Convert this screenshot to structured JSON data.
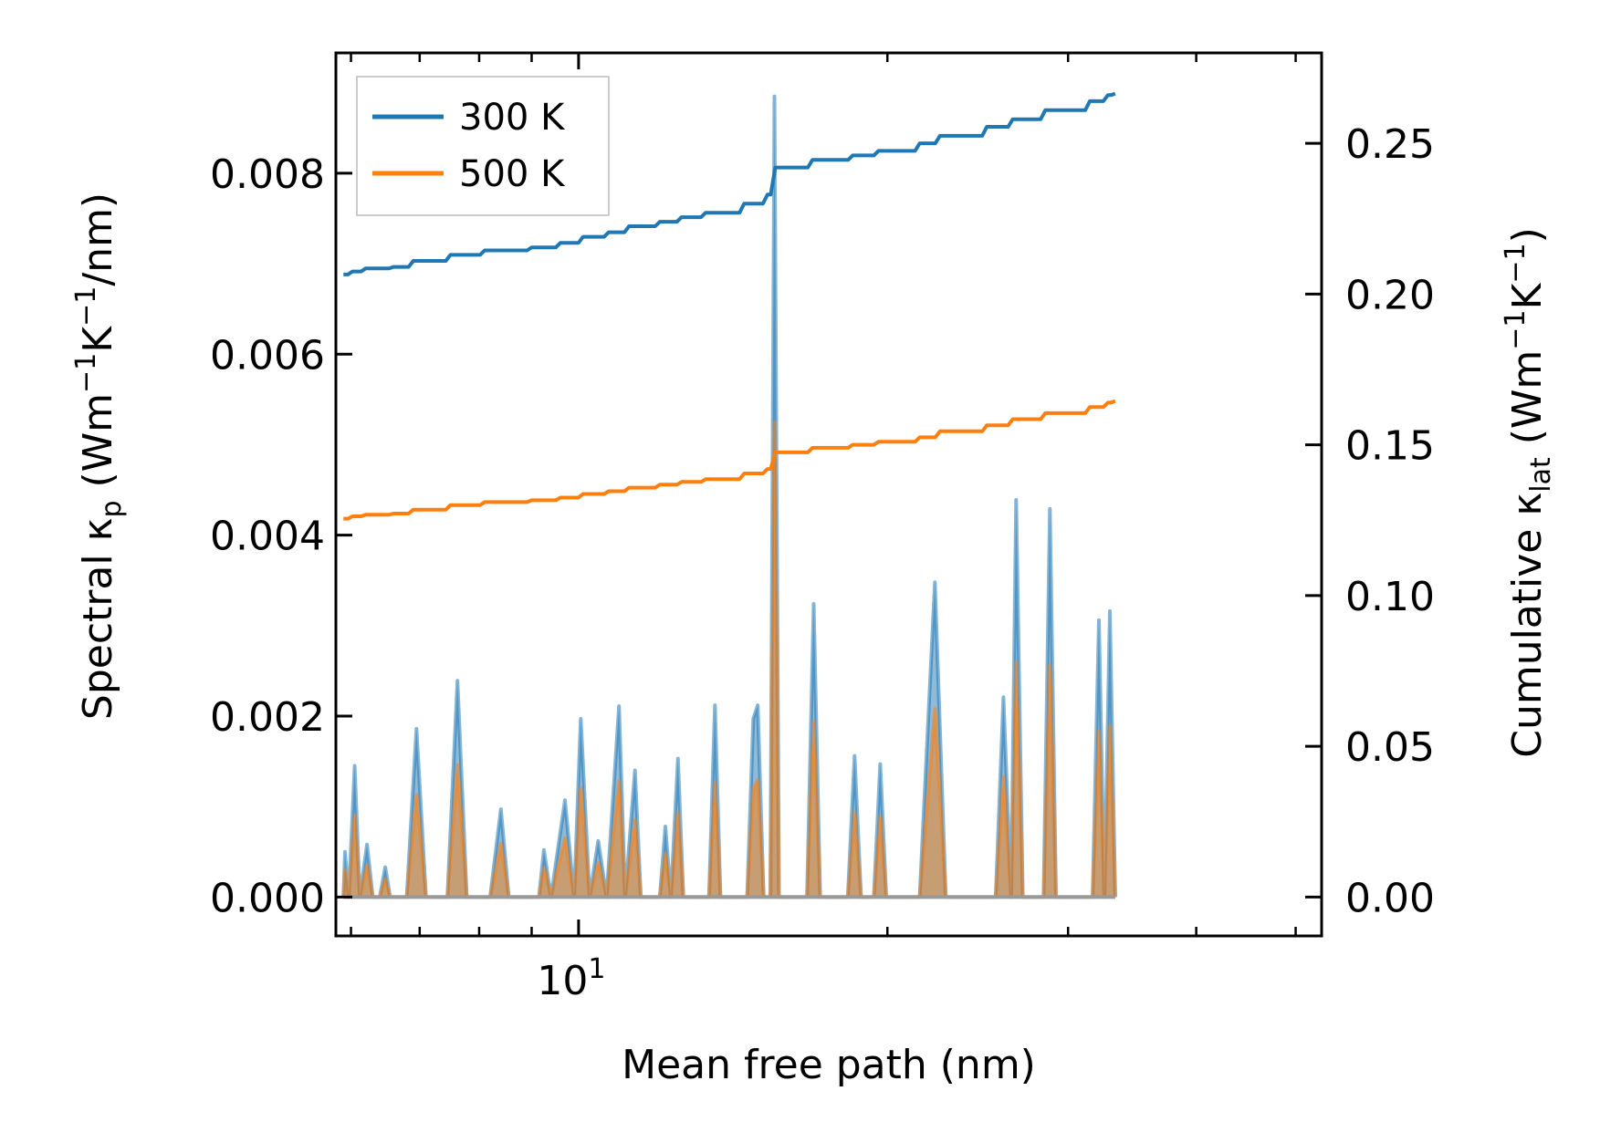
{
  "chart_data": {
    "type": "line",
    "xscale": "log",
    "xlabel": "Mean free path (nm)",
    "ylabel_left": {
      "prefix": "Spectral κ",
      "sub": "p",
      "units": " (Wm",
      "sup1": "−1",
      "mid": "K",
      "sup2": "−1",
      "end": "/nm)"
    },
    "ylabel_right": {
      "prefix": "Cumulative κ",
      "sub": "lat",
      "units": " (Wm",
      "sup1": "−1",
      "mid": "K",
      "sup2": "−1",
      "end": ")"
    },
    "xlim": [
      5.8,
      53.0
    ],
    "ylim_left": [
      -0.00043,
      0.00933
    ],
    "ylim_right": [
      -0.0129,
      0.28
    ],
    "x_major_ticks": [
      {
        "value": 10,
        "base": "10",
        "exp": "1"
      }
    ],
    "x_minor_ticks": [
      6,
      7,
      8,
      9,
      20,
      30,
      40,
      50
    ],
    "yticks_left": [
      {
        "value": 0,
        "label": "0.000"
      },
      {
        "value": 0.002,
        "label": "0.002"
      },
      {
        "value": 0.004,
        "label": "0.004"
      },
      {
        "value": 0.006,
        "label": "0.006"
      },
      {
        "value": 0.008,
        "label": "0.008"
      }
    ],
    "yticks_right": [
      {
        "value": 0,
        "label": "0.00"
      },
      {
        "value": 0.05,
        "label": "0.05"
      },
      {
        "value": 0.1,
        "label": "0.10"
      },
      {
        "value": 0.15,
        "label": "0.15"
      },
      {
        "value": 0.2,
        "label": "0.20"
      },
      {
        "value": 0.25,
        "label": "0.25"
      }
    ],
    "legend": {
      "position": "top-left",
      "entries": [
        {
          "label": "300 K",
          "color": "#1f77b4"
        },
        {
          "label": "500 K",
          "color": "#ff7f0e"
        }
      ]
    },
    "spectral_series": [
      {
        "name": "300 K",
        "color": "#1f77b4",
        "axis": "left",
        "points": [
          [
            5.9,
            0
          ],
          [
            5.92,
            0.0005
          ],
          [
            5.97,
            0
          ],
          [
            6.05,
            0.00145
          ],
          [
            6.12,
            0
          ],
          [
            6.22,
            0.00058
          ],
          [
            6.3,
            0
          ],
          [
            6.4,
            0
          ],
          [
            6.48,
            0.00033
          ],
          [
            6.55,
            0
          ],
          [
            6.8,
            0
          ],
          [
            6.95,
            0.00186
          ],
          [
            7.1,
            0
          ],
          [
            7.45,
            0
          ],
          [
            7.62,
            0.00239
          ],
          [
            7.78,
            0
          ],
          [
            8.2,
            0
          ],
          [
            8.4,
            0.00097
          ],
          [
            8.55,
            0
          ],
          [
            9.15,
            0
          ],
          [
            9.25,
            0.00052
          ],
          [
            9.4,
            0
          ],
          [
            9.7,
            0.00107
          ],
          [
            9.9,
            0
          ],
          [
            10.05,
            0.00197
          ],
          [
            10.25,
            0
          ],
          [
            10.45,
            0.00062
          ],
          [
            10.65,
            0
          ],
          [
            10.95,
            0.00211
          ],
          [
            11.1,
            0
          ],
          [
            11.35,
            0.0014
          ],
          [
            11.5,
            0
          ],
          [
            12.0,
            0
          ],
          [
            12.15,
            0.00078
          ],
          [
            12.3,
            0
          ],
          [
            12.5,
            0.00153
          ],
          [
            12.65,
            0
          ],
          [
            13.4,
            0
          ],
          [
            13.58,
            0.00212
          ],
          [
            13.75,
            0
          ],
          [
            14.6,
            0
          ],
          [
            14.8,
            0.00197
          ],
          [
            14.95,
            0.00212
          ],
          [
            15.15,
            0
          ],
          [
            15.38,
            0
          ],
          [
            15.52,
            0.00885
          ],
          [
            15.68,
            0
          ],
          [
            16.7,
            0
          ],
          [
            16.95,
            0.00324
          ],
          [
            17.2,
            0
          ],
          [
            18.3,
            0
          ],
          [
            18.58,
            0.00156
          ],
          [
            18.85,
            0
          ],
          [
            19.4,
            0
          ],
          [
            19.68,
            0.00147
          ],
          [
            19.95,
            0
          ],
          [
            21.5,
            0
          ],
          [
            22.25,
            0.00348
          ],
          [
            22.8,
            0
          ],
          [
            25.5,
            0
          ],
          [
            25.95,
            0.00221
          ],
          [
            26.4,
            0
          ],
          [
            26.7,
            0.00439
          ],
          [
            27.1,
            0
          ],
          [
            28.4,
            0
          ],
          [
            28.8,
            0.00429
          ],
          [
            29.2,
            0
          ],
          [
            31.7,
            0
          ],
          [
            32.15,
            0.00306
          ],
          [
            32.55,
            0
          ],
          [
            32.95,
            0.00316
          ],
          [
            33.35,
            0
          ]
        ]
      },
      {
        "name": "500 K",
        "color": "#ff7f0e",
        "axis": "left",
        "points": [
          [
            5.9,
            0
          ],
          [
            5.92,
            0.0003
          ],
          [
            5.97,
            0
          ],
          [
            6.05,
            0.0009
          ],
          [
            6.12,
            0
          ],
          [
            6.22,
            0.00035
          ],
          [
            6.3,
            0
          ],
          [
            6.4,
            0
          ],
          [
            6.48,
            0.0002
          ],
          [
            6.55,
            0
          ],
          [
            6.8,
            0
          ],
          [
            6.95,
            0.00113
          ],
          [
            7.1,
            0
          ],
          [
            7.45,
            0
          ],
          [
            7.62,
            0.00146
          ],
          [
            7.78,
            0
          ],
          [
            8.2,
            0
          ],
          [
            8.4,
            0.00059
          ],
          [
            8.55,
            0
          ],
          [
            9.15,
            0
          ],
          [
            9.25,
            0.00032
          ],
          [
            9.4,
            0
          ],
          [
            9.7,
            0.00065
          ],
          [
            9.9,
            0
          ],
          [
            10.05,
            0.0012
          ],
          [
            10.25,
            0
          ],
          [
            10.45,
            0.00038
          ],
          [
            10.65,
            0
          ],
          [
            10.95,
            0.00128
          ],
          [
            11.1,
            0
          ],
          [
            11.35,
            0.00085
          ],
          [
            11.5,
            0
          ],
          [
            12.0,
            0
          ],
          [
            12.15,
            0.00048
          ],
          [
            12.3,
            0
          ],
          [
            12.5,
            0.00093
          ],
          [
            12.65,
            0
          ],
          [
            13.4,
            0
          ],
          [
            13.58,
            0.00126
          ],
          [
            13.75,
            0
          ],
          [
            14.6,
            0
          ],
          [
            14.8,
            0.0012
          ],
          [
            14.95,
            0.00129
          ],
          [
            15.15,
            0
          ],
          [
            15.38,
            0
          ],
          [
            15.52,
            0.00525
          ],
          [
            15.68,
            0
          ],
          [
            16.7,
            0
          ],
          [
            16.95,
            0.00194
          ],
          [
            17.2,
            0
          ],
          [
            18.3,
            0
          ],
          [
            18.58,
            0.00093
          ],
          [
            18.85,
            0
          ],
          [
            19.4,
            0
          ],
          [
            19.68,
            0.00089
          ],
          [
            19.95,
            0
          ],
          [
            21.5,
            0
          ],
          [
            22.25,
            0.00208
          ],
          [
            22.8,
            0
          ],
          [
            25.5,
            0
          ],
          [
            25.95,
            0.00133
          ],
          [
            26.4,
            0
          ],
          [
            26.7,
            0.00259
          ],
          [
            27.1,
            0
          ],
          [
            28.4,
            0
          ],
          [
            28.8,
            0.00256
          ],
          [
            29.2,
            0
          ],
          [
            31.7,
            0
          ],
          [
            32.15,
            0.00183
          ],
          [
            32.55,
            0
          ],
          [
            32.95,
            0.00189
          ],
          [
            33.35,
            0
          ]
        ]
      }
    ],
    "cumulative_series": [
      {
        "name": "300 K",
        "color": "#1f77b4",
        "axis": "right",
        "points": [
          [
            5.9,
            0.2065
          ],
          [
            6.02,
            0.2075
          ],
          [
            6.2,
            0.2085
          ],
          [
            6.6,
            0.209
          ],
          [
            6.9,
            0.211
          ],
          [
            7.5,
            0.213
          ],
          [
            8.1,
            0.2145
          ],
          [
            9.0,
            0.2155
          ],
          [
            9.6,
            0.217
          ],
          [
            10.1,
            0.219
          ],
          [
            10.7,
            0.2205
          ],
          [
            11.2,
            0.2225
          ],
          [
            12.0,
            0.224
          ],
          [
            12.6,
            0.2255
          ],
          [
            13.3,
            0.227
          ],
          [
            14.5,
            0.23
          ],
          [
            15.28,
            0.233
          ],
          [
            15.55,
            0.242
          ],
          [
            16.9,
            0.2445
          ],
          [
            18.5,
            0.246
          ],
          [
            19.6,
            0.2475
          ],
          [
            21.5,
            0.25
          ],
          [
            22.5,
            0.2525
          ],
          [
            25.0,
            0.2555
          ],
          [
            26.5,
            0.258
          ],
          [
            28.5,
            0.261
          ],
          [
            31.5,
            0.264
          ],
          [
            32.8,
            0.266
          ],
          [
            33.35,
            0.2665
          ]
        ]
      },
      {
        "name": "500 K",
        "color": "#ff7f0e",
        "axis": "right",
        "points": [
          [
            5.9,
            0.1255
          ],
          [
            6.02,
            0.1263
          ],
          [
            6.2,
            0.1268
          ],
          [
            6.6,
            0.1272
          ],
          [
            6.9,
            0.1285
          ],
          [
            7.5,
            0.13
          ],
          [
            8.1,
            0.131
          ],
          [
            9.0,
            0.1316
          ],
          [
            9.6,
            0.1325
          ],
          [
            10.1,
            0.1337
          ],
          [
            10.7,
            0.1346
          ],
          [
            11.2,
            0.1358
          ],
          [
            12.0,
            0.1368
          ],
          [
            12.6,
            0.1377
          ],
          [
            13.3,
            0.1386
          ],
          [
            14.5,
            0.1405
          ],
          [
            15.28,
            0.142
          ],
          [
            15.55,
            0.1475
          ],
          [
            16.9,
            0.149
          ],
          [
            18.5,
            0.15
          ],
          [
            19.6,
            0.151
          ],
          [
            21.5,
            0.1525
          ],
          [
            22.5,
            0.1545
          ],
          [
            25.0,
            0.1565
          ],
          [
            26.5,
            0.1585
          ],
          [
            28.5,
            0.1605
          ],
          [
            31.5,
            0.1625
          ],
          [
            32.8,
            0.164
          ],
          [
            33.35,
            0.1645
          ]
        ]
      }
    ]
  }
}
